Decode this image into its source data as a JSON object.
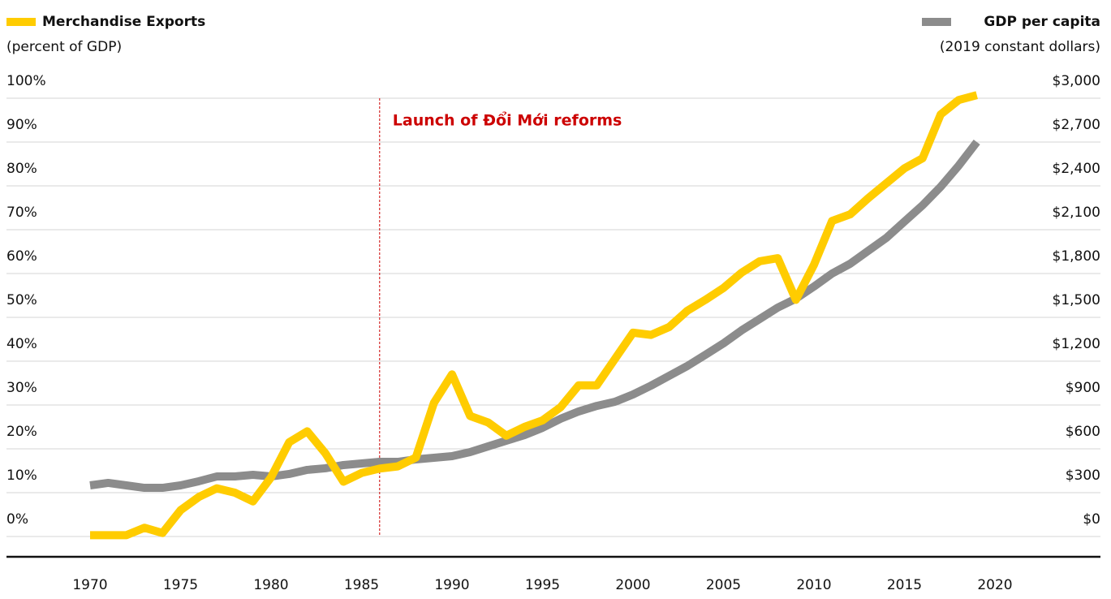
{
  "chart_data": {
    "type": "line",
    "x": [
      1970,
      1971,
      1972,
      1973,
      1974,
      1975,
      1976,
      1977,
      1978,
      1979,
      1980,
      1981,
      1982,
      1983,
      1984,
      1985,
      1986,
      1987,
      1988,
      1989,
      1990,
      1991,
      1992,
      1993,
      1994,
      1995,
      1996,
      1997,
      1998,
      1999,
      2000,
      2001,
      2002,
      2003,
      2004,
      2005,
      2006,
      2007,
      2008,
      2009,
      2010,
      2011,
      2012,
      2013,
      2014,
      2015,
      2016,
      2017,
      2018,
      2019
    ],
    "series": [
      {
        "name": "Merchandise Exports",
        "color": "#ffcc00",
        "axis": "y",
        "values": [
          0.3,
          0.3,
          0.3,
          2,
          0.8,
          6,
          9,
          11,
          10,
          8,
          13.5,
          21.5,
          24,
          19,
          12.5,
          14.5,
          15.5,
          16,
          18,
          30.5,
          37,
          27.5,
          26,
          23,
          25,
          26.5,
          29.5,
          34.5,
          34.5,
          40.5,
          46.5,
          46,
          47.8,
          51.5,
          54,
          56.7,
          60.2,
          62.8,
          63.5,
          54,
          62,
          72,
          73.5,
          77.2,
          80.6,
          84,
          86.3,
          96.3,
          99.6,
          100.7
        ]
      },
      {
        "name": "GDP per capita",
        "color": "#8c8c8c",
        "axis": "y2",
        "values": [
          350,
          367,
          350,
          333,
          333,
          350,
          378,
          411,
          411,
          422,
          411,
          428,
          456,
          467,
          489,
          500,
          511,
          511,
          528,
          539,
          550,
          578,
          617,
          656,
          694,
          744,
          806,
          856,
          894,
          922,
          972,
          1033,
          1100,
          1167,
          1244,
          1322,
          1411,
          1489,
          1567,
          1628,
          1711,
          1800,
          1867,
          1956,
          2044,
          2156,
          2267,
          2394,
          2539,
          2700
        ]
      }
    ],
    "ylabel": "(percent of GDP)",
    "y2label": "(2019 constant dollars)",
    "xlim": [
      1970,
      2020
    ],
    "xticks": [
      1970,
      1975,
      1980,
      1985,
      1990,
      1995,
      2000,
      2005,
      2010,
      2015,
      2020
    ],
    "ylim": [
      0,
      100
    ],
    "yticks": [
      {
        "value": 0,
        "label": "0%"
      },
      {
        "value": 10,
        "label": "10%"
      },
      {
        "value": 20,
        "label": "20%"
      },
      {
        "value": 30,
        "label": "30%"
      },
      {
        "value": 40,
        "label": "40%"
      },
      {
        "value": 50,
        "label": "50%"
      },
      {
        "value": 60,
        "label": "60%"
      },
      {
        "value": 70,
        "label": "70%"
      },
      {
        "value": 80,
        "label": "80%"
      },
      {
        "value": 90,
        "label": "90%"
      },
      {
        "value": 100,
        "label": "100%"
      }
    ],
    "y2lim": [
      0,
      3000
    ],
    "y2ticks": [
      {
        "value": 0,
        "label": "$0"
      },
      {
        "value": 300,
        "label": "$300"
      },
      {
        "value": 600,
        "label": "$600"
      },
      {
        "value": 900,
        "label": "$900"
      },
      {
        "value": 1200,
        "label": "$1,200"
      },
      {
        "value": 1500,
        "label": "$1,500"
      },
      {
        "value": 1800,
        "label": "$1,800"
      },
      {
        "value": 2100,
        "label": "$2,100"
      },
      {
        "value": 2400,
        "label": "$2,400"
      },
      {
        "value": 2700,
        "label": "$2,700"
      },
      {
        "value": 3000,
        "label": "$3,000"
      }
    ],
    "grid": true,
    "annotations": [
      {
        "text": "Launch of Đổi Mới reforms",
        "x": 1986,
        "color": "#cc0000"
      }
    ]
  }
}
